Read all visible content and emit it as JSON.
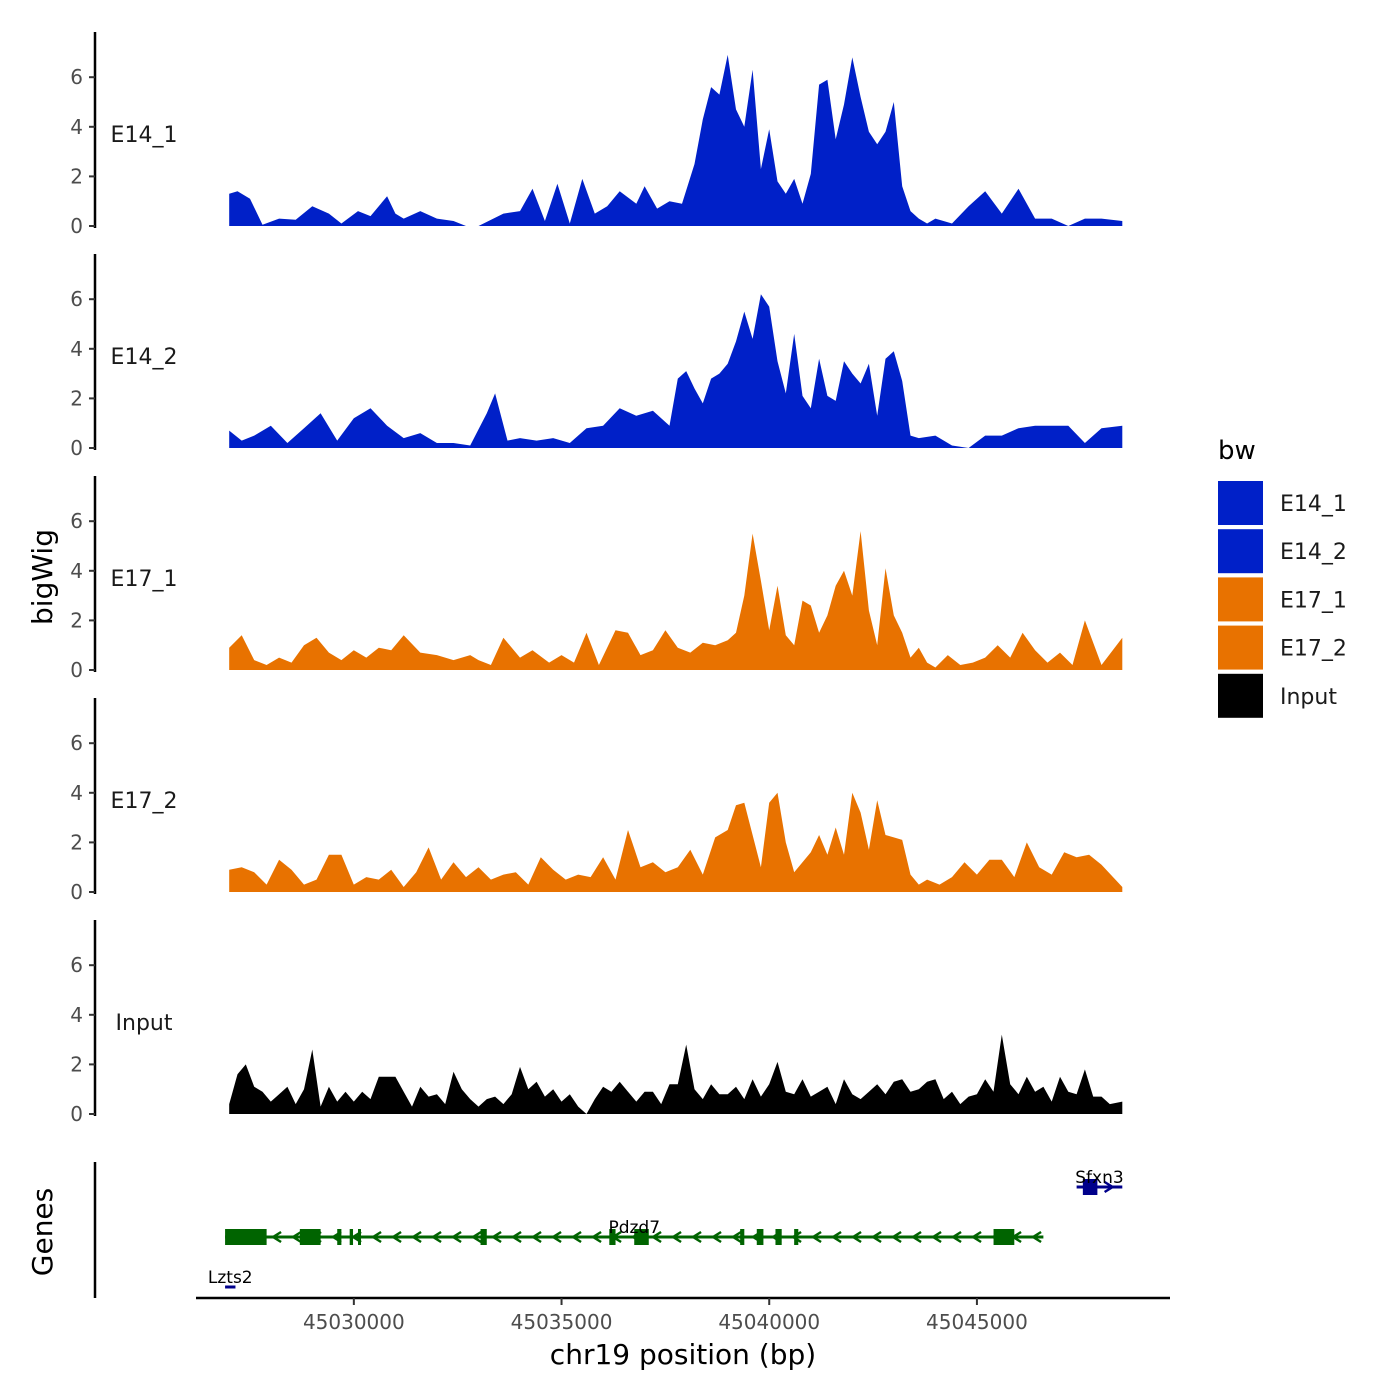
{
  "chart_data": {
    "type": "area",
    "title": "",
    "xlabel": "chr19 position (bp)",
    "ylabel": "bigWig",
    "xlim": [
      45026200,
      45049600
    ],
    "ylim": [
      0,
      7.5
    ],
    "x_ticks": [
      45030000,
      45035000,
      45040000,
      45045000
    ],
    "y_ticks": [
      0,
      2,
      4,
      6
    ],
    "legend": {
      "title": "bw",
      "position": "right",
      "entries": [
        {
          "name": "E14_1",
          "color": "#0020C8"
        },
        {
          "name": "E14_2",
          "color": "#0020C8"
        },
        {
          "name": "E17_1",
          "color": "#E87200"
        },
        {
          "name": "E17_2",
          "color": "#E87200"
        },
        {
          "name": "Input",
          "color": "#000000"
        }
      ]
    },
    "series": [
      {
        "name": "E14_1",
        "color": "#0020C8",
        "x": [
          45027000,
          45027200,
          45027500,
          45027800,
          45028200,
          45028600,
          45029000,
          45029400,
          45029700,
          45030100,
          45030400,
          45030800,
          45031000,
          45031200,
          45031600,
          45032000,
          45032400,
          45032700,
          45033000,
          45033600,
          45034000,
          45034300,
          45034600,
          45034900,
          45035200,
          45035500,
          45035800,
          45036100,
          45036400,
          45036800,
          45037000,
          45037300,
          45037600,
          45037900,
          45038200,
          45038400,
          45038600,
          45038800,
          45039000,
          45039200,
          45039400,
          45039600,
          45039800,
          45040000,
          45040200,
          45040400,
          45040600,
          45040800,
          45041000,
          45041200,
          45041400,
          45041600,
          45041800,
          45042000,
          45042200,
          45042400,
          45042600,
          45042800,
          45043000,
          45043200,
          45043400,
          45043600,
          45043800,
          45044000,
          45044400,
          45044800,
          45045200,
          45045600,
          45046000,
          45046400,
          45046800,
          45047200,
          45047600,
          45048000,
          45048500
        ],
        "y": [
          1.3,
          1.4,
          1.1,
          0.05,
          0.3,
          0.25,
          0.8,
          0.5,
          0.1,
          0.6,
          0.4,
          1.2,
          0.5,
          0.3,
          0.6,
          0.3,
          0.2,
          0.0,
          0.0,
          0.5,
          0.6,
          1.5,
          0.2,
          1.7,
          0.1,
          1.9,
          0.5,
          0.8,
          1.4,
          0.9,
          1.6,
          0.7,
          1.0,
          0.9,
          2.5,
          4.3,
          5.6,
          5.3,
          6.9,
          4.7,
          4.0,
          6.3,
          2.3,
          3.9,
          1.8,
          1.3,
          1.9,
          0.9,
          2.1,
          5.7,
          5.9,
          3.5,
          4.9,
          6.8,
          5.2,
          3.8,
          3.3,
          3.8,
          5.0,
          1.6,
          0.6,
          0.3,
          0.1,
          0.3,
          0.1,
          0.8,
          1.4,
          0.5,
          1.5,
          0.3,
          0.3,
          0.0,
          0.3,
          0.3,
          0.2
        ]
      },
      {
        "name": "E14_2",
        "color": "#0020C8",
        "x": [
          45027000,
          45027300,
          45027600,
          45028000,
          45028400,
          45028800,
          45029200,
          45029600,
          45030000,
          45030400,
          45030800,
          45031200,
          45031600,
          45032000,
          45032400,
          45032800,
          45033200,
          45033400,
          45033700,
          45034000,
          45034400,
          45034800,
          45035200,
          45035600,
          45036000,
          45036400,
          45036800,
          45037200,
          45037600,
          45037800,
          45038000,
          45038200,
          45038400,
          45038600,
          45038800,
          45039000,
          45039200,
          45039400,
          45039600,
          45039800,
          45040000,
          45040200,
          45040400,
          45040600,
          45040800,
          45041000,
          45041200,
          45041400,
          45041600,
          45041800,
          45042000,
          45042200,
          45042400,
          45042600,
          45042800,
          45043000,
          45043200,
          45043400,
          45043600,
          45044000,
          45044400,
          45044800,
          45045200,
          45045600,
          45046000,
          45046400,
          45046800,
          45047200,
          45047600,
          45048000,
          45048500
        ],
        "y": [
          0.7,
          0.3,
          0.5,
          0.9,
          0.2,
          0.8,
          1.4,
          0.3,
          1.2,
          1.6,
          0.9,
          0.4,
          0.6,
          0.2,
          0.2,
          0.1,
          1.4,
          2.2,
          0.3,
          0.4,
          0.3,
          0.4,
          0.2,
          0.8,
          0.9,
          1.6,
          1.3,
          1.5,
          0.9,
          2.8,
          3.1,
          2.4,
          1.8,
          2.8,
          3.0,
          3.4,
          4.3,
          5.5,
          4.4,
          6.2,
          5.7,
          3.5,
          2.2,
          4.6,
          2.1,
          1.6,
          3.6,
          2.1,
          1.9,
          3.5,
          3.0,
          2.6,
          3.4,
          1.3,
          3.6,
          3.9,
          2.7,
          0.5,
          0.4,
          0.5,
          0.1,
          0.0,
          0.5,
          0.5,
          0.8,
          0.9,
          0.9,
          0.9,
          0.2,
          0.8,
          0.9
        ]
      },
      {
        "name": "E17_1",
        "color": "#E87200",
        "x": [
          45027000,
          45027300,
          45027600,
          45027900,
          45028200,
          45028500,
          45028800,
          45029100,
          45029400,
          45029700,
          45030000,
          45030300,
          45030600,
          45030900,
          45031200,
          45031600,
          45032000,
          45032400,
          45032800,
          45033000,
          45033300,
          45033600,
          45034000,
          45034300,
          45034700,
          45035000,
          45035300,
          45035600,
          45035900,
          45036300,
          45036600,
          45036900,
          45037200,
          45037500,
          45037800,
          45038100,
          45038400,
          45038700,
          45039000,
          45039200,
          45039400,
          45039600,
          45039800,
          45040000,
          45040200,
          45040400,
          45040600,
          45040800,
          45041000,
          45041200,
          45041400,
          45041600,
          45041800,
          45042000,
          45042200,
          45042400,
          45042600,
          45042800,
          45043000,
          45043200,
          45043400,
          45043600,
          45043800,
          45044000,
          45044300,
          45044600,
          45044900,
          45045200,
          45045500,
          45045800,
          45046100,
          45046400,
          45046700,
          45047000,
          45047300,
          45047600,
          45048000,
          45048500
        ],
        "y": [
          0.9,
          1.4,
          0.4,
          0.2,
          0.5,
          0.3,
          1.0,
          1.3,
          0.7,
          0.4,
          0.8,
          0.5,
          0.9,
          0.8,
          1.4,
          0.7,
          0.6,
          0.4,
          0.6,
          0.4,
          0.2,
          1.3,
          0.5,
          0.8,
          0.3,
          0.6,
          0.3,
          1.5,
          0.2,
          1.6,
          1.5,
          0.6,
          0.8,
          1.6,
          0.9,
          0.7,
          1.1,
          1.0,
          1.2,
          1.5,
          3.0,
          5.5,
          3.6,
          1.6,
          3.4,
          1.4,
          1.0,
          2.8,
          2.6,
          1.5,
          2.2,
          3.4,
          4.0,
          3.0,
          5.6,
          2.4,
          1.0,
          4.1,
          2.2,
          1.5,
          0.5,
          0.9,
          0.3,
          0.1,
          0.6,
          0.2,
          0.3,
          0.5,
          1.0,
          0.5,
          1.5,
          0.8,
          0.3,
          0.7,
          0.2,
          2.0,
          0.2,
          1.3
        ]
      },
      {
        "name": "E17_2",
        "color": "#E87200",
        "x": [
          45027000,
          45027300,
          45027600,
          45027900,
          45028200,
          45028500,
          45028800,
          45029100,
          45029400,
          45029700,
          45030000,
          45030300,
          45030600,
          45030900,
          45031200,
          45031500,
          45031800,
          45032100,
          45032400,
          45032700,
          45033000,
          45033300,
          45033600,
          45033900,
          45034200,
          45034500,
          45034800,
          45035100,
          45035400,
          45035700,
          45036000,
          45036300,
          45036600,
          45036900,
          45037200,
          45037500,
          45037800,
          45038100,
          45038400,
          45038700,
          45039000,
          45039200,
          45039400,
          45039600,
          45039800,
          45040000,
          45040200,
          45040400,
          45040600,
          45040800,
          45041000,
          45041200,
          45041400,
          45041600,
          45041800,
          45042000,
          45042200,
          45042400,
          45042600,
          45042800,
          45043000,
          45043200,
          45043400,
          45043600,
          45043800,
          45044100,
          45044400,
          45044700,
          45045000,
          45045300,
          45045600,
          45045900,
          45046200,
          45046500,
          45046800,
          45047100,
          45047400,
          45047700,
          45048000,
          45048500
        ],
        "y": [
          0.9,
          1.0,
          0.8,
          0.3,
          1.3,
          0.9,
          0.3,
          0.5,
          1.5,
          1.5,
          0.3,
          0.6,
          0.5,
          0.9,
          0.2,
          0.8,
          1.8,
          0.5,
          1.2,
          0.6,
          1.0,
          0.5,
          0.7,
          0.8,
          0.3,
          1.4,
          0.9,
          0.5,
          0.7,
          0.6,
          1.4,
          0.5,
          2.5,
          1.0,
          1.2,
          0.8,
          1.0,
          1.7,
          0.7,
          2.2,
          2.5,
          3.5,
          3.6,
          2.3,
          1.0,
          3.6,
          4.0,
          2.0,
          0.8,
          1.2,
          1.6,
          2.3,
          1.5,
          2.6,
          1.5,
          4.0,
          3.2,
          1.7,
          3.7,
          2.3,
          2.2,
          2.1,
          0.7,
          0.3,
          0.5,
          0.3,
          0.6,
          1.2,
          0.7,
          1.3,
          1.3,
          0.6,
          2.0,
          1.0,
          0.7,
          1.6,
          1.4,
          1.5,
          1.1,
          0.2
        ]
      },
      {
        "name": "Input",
        "color": "#000000",
        "x": [
          45027000,
          45027200,
          45027400,
          45027600,
          45027800,
          45028000,
          45028200,
          45028400,
          45028600,
          45028800,
          45029000,
          45029200,
          45029400,
          45029600,
          45029800,
          45030000,
          45030200,
          45030400,
          45030600,
          45030800,
          45031000,
          45031200,
          45031400,
          45031600,
          45031800,
          45032000,
          45032200,
          45032400,
          45032600,
          45032800,
          45033000,
          45033200,
          45033400,
          45033600,
          45033800,
          45034000,
          45034200,
          45034400,
          45034600,
          45034800,
          45035000,
          45035200,
          45035400,
          45035600,
          45035800,
          45036000,
          45036200,
          45036400,
          45036600,
          45036800,
          45037000,
          45037200,
          45037400,
          45037600,
          45037800,
          45038000,
          45038200,
          45038400,
          45038600,
          45038800,
          45039000,
          45039200,
          45039400,
          45039600,
          45039800,
          45040000,
          45040200,
          45040400,
          45040600,
          45040800,
          45041000,
          45041200,
          45041400,
          45041600,
          45041800,
          45042000,
          45042200,
          45042400,
          45042600,
          45042800,
          45043000,
          45043200,
          45043400,
          45043600,
          45043800,
          45044000,
          45044200,
          45044400,
          45044600,
          45044800,
          45045000,
          45045200,
          45045400,
          45045600,
          45045800,
          45046000,
          45046200,
          45046400,
          45046600,
          45046800,
          45047000,
          45047200,
          45047400,
          45047600,
          45047800,
          45048000,
          45048200,
          45048500
        ],
        "y": [
          0.4,
          1.6,
          2.0,
          1.1,
          0.9,
          0.5,
          0.8,
          1.1,
          0.4,
          1.0,
          2.6,
          0.3,
          1.1,
          0.5,
          0.9,
          0.5,
          0.9,
          0.6,
          1.5,
          1.5,
          1.5,
          0.9,
          0.3,
          1.1,
          0.7,
          0.8,
          0.4,
          1.7,
          1.0,
          0.6,
          0.3,
          0.6,
          0.7,
          0.4,
          0.8,
          1.9,
          1.0,
          1.3,
          0.7,
          1.0,
          0.5,
          0.8,
          0.3,
          0.0,
          0.6,
          1.1,
          0.9,
          1.3,
          0.9,
          0.5,
          0.9,
          0.9,
          0.4,
          1.2,
          1.2,
          2.8,
          1.0,
          0.6,
          1.2,
          0.8,
          0.8,
          1.1,
          0.6,
          1.4,
          0.7,
          1.2,
          2.1,
          0.9,
          0.8,
          1.4,
          0.7,
          0.9,
          1.1,
          0.4,
          1.4,
          0.8,
          0.6,
          0.9,
          1.2,
          0.8,
          1.3,
          1.4,
          0.9,
          1.0,
          1.3,
          1.4,
          0.6,
          0.9,
          0.4,
          0.7,
          0.8,
          1.4,
          0.9,
          3.2,
          1.2,
          0.8,
          1.5,
          0.9,
          1.1,
          0.5,
          1.5,
          0.9,
          0.8,
          1.8,
          0.7,
          0.7,
          0.4,
          0.5
        ]
      }
    ],
    "genes": [
      {
        "name": "Lzts2",
        "strand": "+",
        "start": 45026900,
        "end": 45027150,
        "color": "#00008B",
        "row": 3,
        "exons": []
      },
      {
        "name": "Pdzd7",
        "strand": "-",
        "start": 45026900,
        "end": 45046600,
        "color": "#006400",
        "row": 2,
        "exons": [
          [
            45026900,
            45027900
          ],
          [
            45028700,
            45029200
          ],
          [
            45029600,
            45029700
          ],
          [
            45029900,
            45029980
          ],
          [
            45030100,
            45030160
          ],
          [
            45033050,
            45033200
          ],
          [
            45036150,
            45036300
          ],
          [
            45036750,
            45037100
          ],
          [
            45039300,
            45039400
          ],
          [
            45039700,
            45039860
          ],
          [
            45040150,
            45040300
          ],
          [
            45040600,
            45040700
          ],
          [
            45045400,
            45045900
          ]
        ]
      },
      {
        "name": "Sfxn3",
        "strand": "+",
        "start": 45047400,
        "end": 45048500,
        "color": "#00008B",
        "row": 1,
        "exons": [
          [
            45047550,
            45047900
          ]
        ]
      }
    ],
    "gene_track_label": "Genes"
  }
}
